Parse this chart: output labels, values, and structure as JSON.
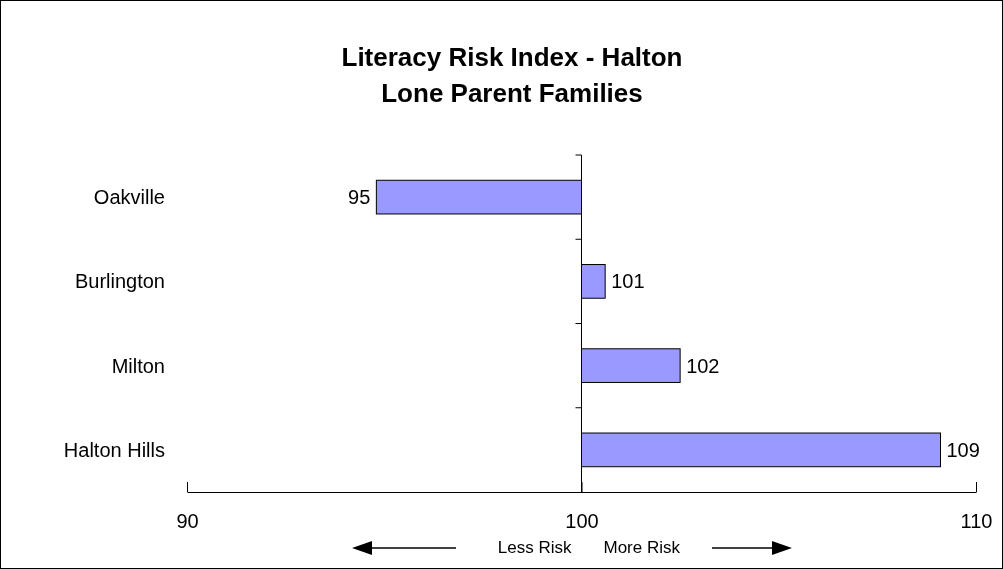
{
  "chart_data": {
    "type": "bar",
    "orientation": "horizontal",
    "title": "Literacy Risk Index - Halton\nLone Parent Families",
    "categories": [
      "Oakville",
      "Burlington",
      "Milton",
      "Halton Hills"
    ],
    "base": [
      100,
      100,
      100,
      100
    ],
    "values": [
      -5.2,
      0.6,
      2.5,
      9.1
    ],
    "value_labels": [
      "95",
      "101",
      "102",
      "109"
    ],
    "color": "#9999ff",
    "xlim": [
      90,
      110
    ],
    "xticks": [
      90,
      100,
      110
    ],
    "annotations": [
      "Less Risk",
      "More Risk"
    ]
  }
}
